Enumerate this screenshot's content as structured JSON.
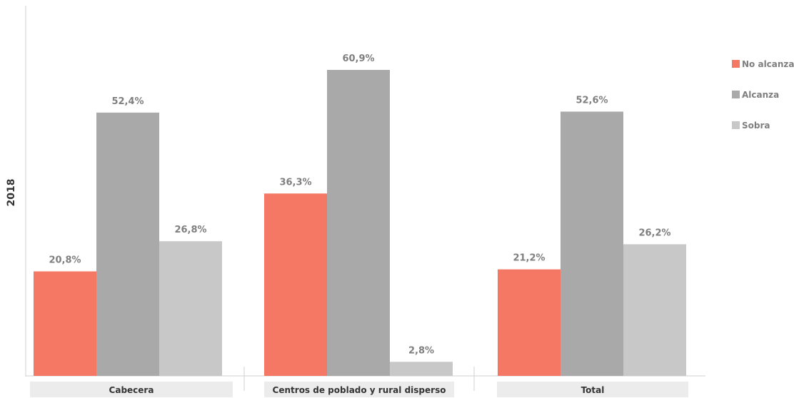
{
  "chart_data": {
    "type": "bar",
    "ylabel": "2018",
    "categories": [
      "Cabecera",
      "Centros de poblado y rural disperso",
      "Total"
    ],
    "series": [
      {
        "name": "No alcanza",
        "values": [
          20.8,
          36.3,
          21.2
        ],
        "labels": [
          "20,8%",
          "36,3%",
          "21,2%"
        ],
        "color": "#f47864"
      },
      {
        "name": "Alcanza",
        "values": [
          52.4,
          60.9,
          52.6
        ],
        "labels": [
          "52,4%",
          "60,9%",
          "52,6%"
        ],
        "color": "#a9a9a9"
      },
      {
        "name": "Sobra",
        "values": [
          26.8,
          2.8,
          26.2
        ],
        "labels": [
          "26,8%",
          "2,8%",
          "26,2%"
        ],
        "color": "#c8c8c8"
      }
    ],
    "ylim": [
      0,
      60.9
    ],
    "grid": false,
    "legend_position": "right",
    "colors": {
      "axis": "#d0d0d0",
      "category_box": "#ececec",
      "label_text": "#7f7f7f",
      "legend_text": "#7f7f7f"
    }
  }
}
